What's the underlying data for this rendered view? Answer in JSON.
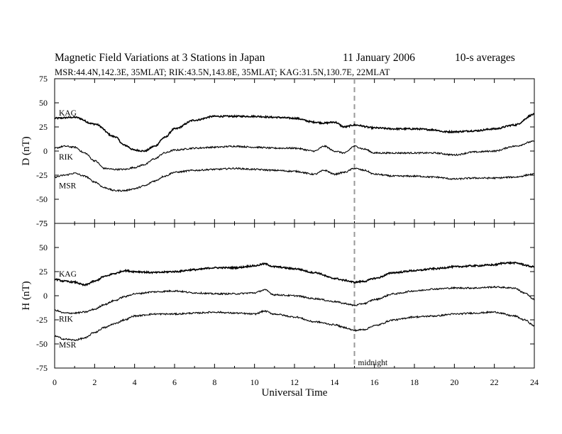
{
  "header": {
    "title": "Magnetic Field Variations at 3 Stations in Japan",
    "date": "11 January 2006",
    "averaging": "10-s averages",
    "stations_line": "MSR:44.4N,142.3E, 35MLAT;  RIK:43.5N,143.8E, 35MLAT;  KAG:31.5N,130.7E, 22MLAT"
  },
  "chart_data": [
    {
      "type": "line",
      "panel": "D",
      "ylabel": "D (nT)",
      "ylim": [
        -75,
        75
      ],
      "yticks": [
        "75",
        "50",
        "25",
        "0",
        "-25",
        "-50",
        "-75"
      ],
      "xlim": [
        0,
        24
      ],
      "series": [
        {
          "name": "KAG",
          "x": [
            0,
            1,
            2,
            3,
            3.5,
            4,
            4.5,
            5,
            5.5,
            6,
            7,
            8,
            9,
            10,
            11,
            12,
            13,
            13.5,
            14,
            14.5,
            15,
            16,
            17,
            18,
            19,
            19.5,
            20,
            21,
            22,
            23,
            24
          ],
          "y": [
            34,
            35,
            28,
            15,
            6,
            1,
            0,
            5,
            14,
            23,
            32,
            36,
            36,
            36,
            35,
            34,
            30,
            29,
            30,
            25,
            27,
            24,
            23,
            23,
            22,
            20,
            20,
            21,
            23,
            27,
            38
          ]
        },
        {
          "name": "RIK",
          "x": [
            0,
            0.5,
            1,
            1.5,
            2,
            2.5,
            3,
            3.5,
            4,
            4.5,
            5,
            5.5,
            6,
            7,
            8,
            9,
            10,
            11,
            12,
            13,
            13.5,
            14,
            14.5,
            15,
            15.5,
            16,
            17,
            18,
            19,
            20,
            21,
            22,
            23,
            24
          ],
          "y": [
            3,
            5,
            4,
            -2,
            -10,
            -18,
            -19,
            -19,
            -17,
            -14,
            -8,
            -2,
            1,
            3,
            4,
            5,
            4,
            3,
            3,
            0,
            5,
            0,
            -2,
            5,
            2,
            -2,
            -2,
            -2,
            -2,
            -4,
            -1,
            0,
            5,
            10
          ]
        },
        {
          "name": "MSR",
          "x": [
            0,
            0.5,
            1,
            1.5,
            2,
            2.5,
            3,
            3.5,
            4,
            4.5,
            5,
            5.5,
            6,
            7,
            8,
            9,
            10,
            11,
            12,
            13,
            13.5,
            14,
            14.5,
            15,
            15.5,
            16,
            17,
            18,
            19,
            20,
            21,
            22,
            23,
            24
          ],
          "y": [
            -27,
            -25,
            -23,
            -26,
            -32,
            -38,
            -41,
            -41,
            -39,
            -36,
            -31,
            -26,
            -22,
            -20,
            -19,
            -18,
            -19,
            -20,
            -21,
            -24,
            -20,
            -24,
            -22,
            -18,
            -20,
            -24,
            -26,
            -26,
            -27,
            -29,
            -28,
            -28,
            -27,
            -24
          ]
        }
      ]
    },
    {
      "type": "line",
      "panel": "H",
      "ylabel": "H (nT)",
      "ylim": [
        -75,
        75
      ],
      "yticks": [
        "75",
        "50",
        "25",
        "0",
        "-25",
        "-50",
        "-75"
      ],
      "xlim": [
        0,
        24
      ],
      "xlabel": "Universal Time",
      "xticks": [
        "0",
        "2",
        "4",
        "6",
        "8",
        "10",
        "12",
        "14",
        "16",
        "18",
        "20",
        "22",
        "24"
      ],
      "annotation": {
        "x": 15,
        "label": "midnight"
      },
      "series": [
        {
          "name": "KAG",
          "x": [
            0,
            0.5,
            1,
            1.5,
            2,
            2.5,
            3,
            3.5,
            4,
            5,
            6,
            7,
            8,
            9,
            10,
            10.5,
            11,
            12,
            13,
            14,
            14.5,
            15,
            15.5,
            16,
            17,
            18,
            19,
            20,
            21,
            22,
            22.5,
            23,
            24
          ],
          "y": [
            17,
            15,
            14,
            11,
            15,
            20,
            23,
            26,
            25,
            24,
            25,
            27,
            29,
            29,
            31,
            33,
            30,
            28,
            24,
            18,
            16,
            14,
            15,
            18,
            24,
            26,
            28,
            30,
            31,
            32,
            34,
            34,
            30
          ]
        },
        {
          "name": "RIK",
          "x": [
            0,
            0.5,
            1,
            1.5,
            2,
            2.5,
            3,
            3.5,
            4,
            5,
            6,
            7,
            8,
            9,
            10,
            10.5,
            11,
            12,
            13,
            14,
            14.5,
            15,
            15.5,
            16,
            17,
            18,
            19,
            20,
            21,
            22,
            23,
            23.5,
            24
          ],
          "y": [
            -15,
            -18,
            -18,
            -17,
            -14,
            -9,
            -5,
            -1,
            2,
            4,
            5,
            3,
            2,
            2,
            3,
            6,
            1,
            0,
            -3,
            -6,
            -8,
            -10,
            -8,
            -4,
            2,
            5,
            7,
            8,
            8,
            9,
            8,
            3,
            -4
          ]
        },
        {
          "name": "MSR",
          "x": [
            0,
            0.5,
            1,
            1.5,
            2,
            2.5,
            3,
            3.5,
            4,
            5,
            6,
            7,
            8,
            9,
            10,
            10.5,
            11,
            12,
            13,
            14,
            14.5,
            15,
            15.5,
            16,
            17,
            18,
            19,
            20,
            21,
            22,
            23,
            23.5,
            24
          ],
          "y": [
            -42,
            -45,
            -46,
            -44,
            -38,
            -33,
            -29,
            -25,
            -21,
            -19,
            -19,
            -18,
            -17,
            -18,
            -19,
            -16,
            -19,
            -22,
            -27,
            -30,
            -33,
            -36,
            -35,
            -31,
            -25,
            -22,
            -21,
            -19,
            -18,
            -17,
            -21,
            -25,
            -31
          ]
        }
      ]
    }
  ]
}
